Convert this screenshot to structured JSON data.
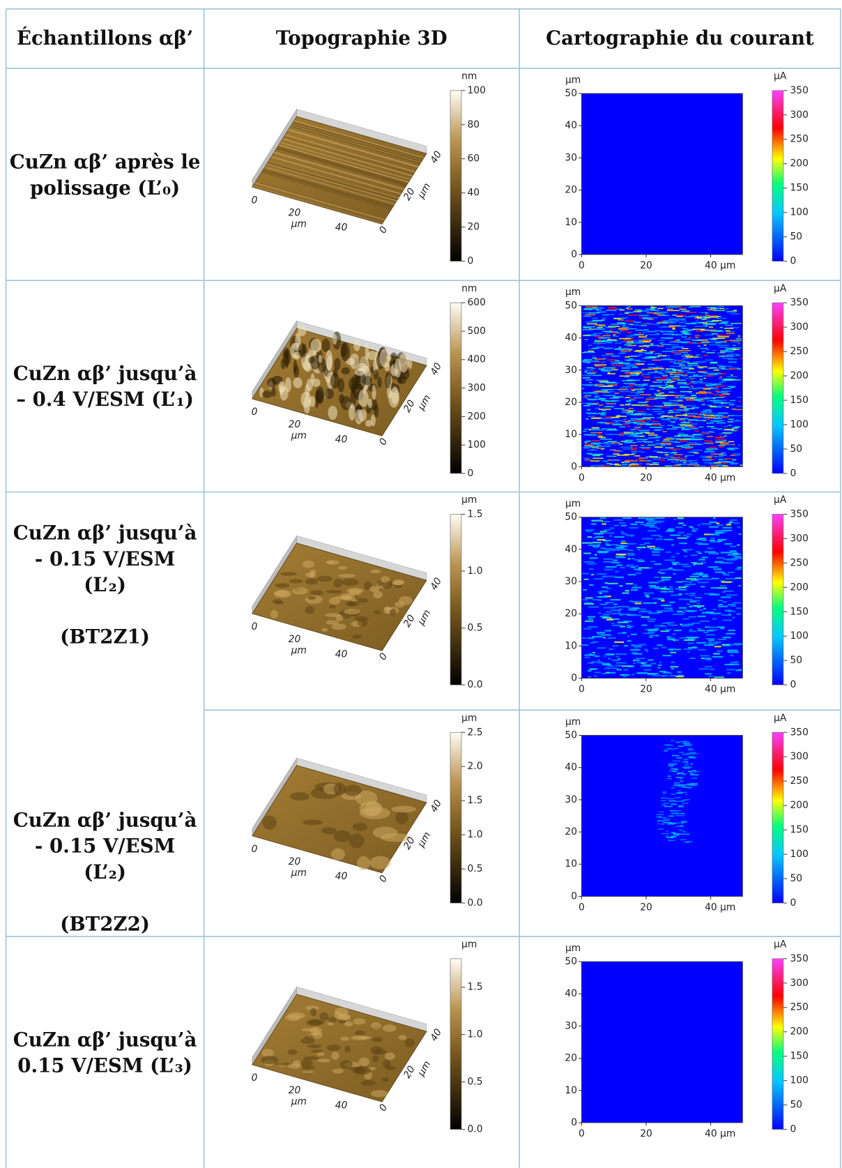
{
  "table": {
    "headers": [
      "Échantillons αβ’",
      "Topographie 3D",
      "Cartographie du courant"
    ],
    "rows": [
      {
        "sample": [
          "CuZn αβ’ après le",
          "polissage (L’₀)"
        ],
        "topo": {
          "unit": "nm",
          "range": [
            0,
            100
          ],
          "colorbar_ticks": [
            "0",
            "20",
            "40",
            "60",
            "80",
            "100"
          ],
          "x_axis": [
            "0",
            "20",
            "µm",
            "40"
          ],
          "y_axis": [
            "0",
            "20",
            "µm",
            "40"
          ]
        },
        "current": {
          "y_unit": "µm",
          "yticks": [
            "0",
            "10",
            "20",
            "30",
            "40",
            "50"
          ],
          "xticks": [
            "0",
            "20",
            "40 µm"
          ],
          "colorbar_unit": "µA",
          "range": [
            0,
            350
          ],
          "colorbar_ticks": [
            "0",
            "50",
            "100",
            "150",
            "200",
            "250",
            "300",
            "350"
          ]
        }
      },
      {
        "sample": [
          "CuZn αβ’ jusqu’à",
          "– 0.4 V/ESM (L’₁)"
        ],
        "topo": {
          "unit": "nm",
          "range": [
            0,
            600
          ],
          "colorbar_ticks": [
            "0",
            "100",
            "200",
            "300",
            "400",
            "500",
            "600"
          ],
          "x_axis": [
            "0",
            "20",
            "µm",
            "40"
          ],
          "y_axis": [
            "0",
            "20",
            "µm",
            "40"
          ]
        },
        "current": {
          "y_unit": "µm",
          "yticks": [
            "0",
            "10",
            "20",
            "30",
            "40",
            "50"
          ],
          "xticks": [
            "0",
            "20",
            "40 µm"
          ],
          "colorbar_unit": "µA",
          "range": [
            0,
            350
          ],
          "colorbar_ticks": [
            "0",
            "50",
            "100",
            "150",
            "200",
            "250",
            "300",
            "350"
          ]
        }
      },
      {
        "sample": [
          "CuZn αβ’ jusqu’à",
          "- 0.15 V/ESM",
          "(L’₂)"
        ],
        "label": "(BT2Z1)",
        "topo": {
          "unit": "µm",
          "range": [
            0,
            1.5
          ],
          "colorbar_ticks": [
            "0.0",
            "0.5",
            "1.0",
            "1.5"
          ],
          "x_axis": [
            "0",
            "20",
            "µm",
            "40"
          ],
          "y_axis": [
            "0",
            "20",
            "µm",
            "40"
          ]
        },
        "current": {
          "y_unit": "µm",
          "yticks": [
            "0",
            "10",
            "20",
            "30",
            "40",
            "50"
          ],
          "xticks": [
            "0",
            "20",
            "40 µm"
          ],
          "colorbar_unit": "µA",
          "range": [
            0,
            350
          ],
          "colorbar_ticks": [
            "0",
            "50",
            "100",
            "150",
            "200",
            "250",
            "300",
            "350"
          ]
        }
      },
      {
        "sample": [
          "CuZn αβ’ jusqu’à",
          "- 0.15 V/ESM",
          "(L’₂)"
        ],
        "label": "(BT2Z2)",
        "topo": {
          "unit": "µm",
          "range": [
            0,
            2.5
          ],
          "colorbar_ticks": [
            "0.0",
            "0.5",
            "1.0",
            "1.5",
            "2.0",
            "2.5"
          ],
          "x_axis": [
            "0",
            "20",
            "µm",
            "40"
          ],
          "y_axis": [
            "0",
            "20",
            "µm",
            "40"
          ]
        },
        "current": {
          "y_unit": "µm",
          "yticks": [
            "0",
            "10",
            "20",
            "30",
            "40",
            "50"
          ],
          "xticks": [
            "0",
            "20",
            "40 µm"
          ],
          "colorbar_unit": "µA",
          "range": [
            0,
            350
          ],
          "colorbar_ticks": [
            "0",
            "50",
            "100",
            "150",
            "200",
            "250",
            "300",
            "350"
          ]
        }
      },
      {
        "sample": [
          "CuZn αβ’ jusqu’à",
          "0.15 V/ESM (L’₃)"
        ],
        "topo": {
          "unit": "µm",
          "range": [
            0,
            1.8
          ],
          "colorbar_ticks": [
            "0.0",
            "0.5",
            "1.0",
            "1.5"
          ],
          "x_axis": [
            "0",
            "20",
            "µm",
            "40"
          ],
          "y_axis": [
            "0",
            "20",
            "µm",
            "40"
          ]
        },
        "current": {
          "y_unit": "µm",
          "yticks": [
            "0",
            "10",
            "20",
            "30",
            "40",
            "50"
          ],
          "xticks": [
            "0",
            "20",
            "40 µm"
          ],
          "colorbar_unit": "µA",
          "range": [
            0,
            350
          ],
          "colorbar_ticks": [
            "0",
            "50",
            "100",
            "150",
            "200",
            "250",
            "300",
            "350"
          ]
        }
      }
    ]
  }
}
